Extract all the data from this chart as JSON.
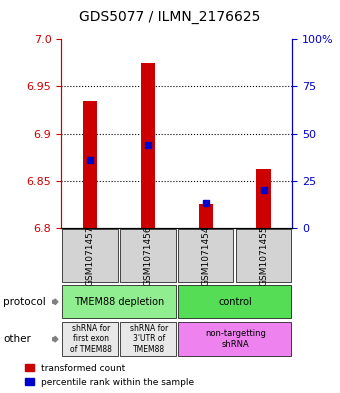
{
  "title": "GDS5077 / ILMN_2176625",
  "samples": [
    "GSM1071457",
    "GSM1071456",
    "GSM1071454",
    "GSM1071455"
  ],
  "red_values": [
    6.935,
    6.975,
    6.825,
    6.862
  ],
  "blue_values": [
    6.872,
    6.888,
    6.826,
    6.84
  ],
  "ymin": 6.8,
  "ymax": 7.0,
  "yticks_left": [
    6.8,
    6.85,
    6.9,
    6.95,
    7.0
  ],
  "yticks_right": [
    0,
    25,
    50,
    75,
    100
  ],
  "protocol_labels": [
    "TMEM88 depletion",
    "control"
  ],
  "protocol_colors": [
    "#90EE90",
    "#66DD66"
  ],
  "other_labels": [
    "shRNA for\nfirst exon\nof TMEM88",
    "shRNA for\n3'UTR of\nTMEM88",
    "non-targetting\nshRNA"
  ],
  "other_colors": [
    "#E8E8E8",
    "#E8E8E8",
    "#EE82EE"
  ],
  "sample_bg_color": "#D3D3D3",
  "red_color": "#CC0000",
  "blue_color": "#0000CC",
  "bar_width": 0.35
}
